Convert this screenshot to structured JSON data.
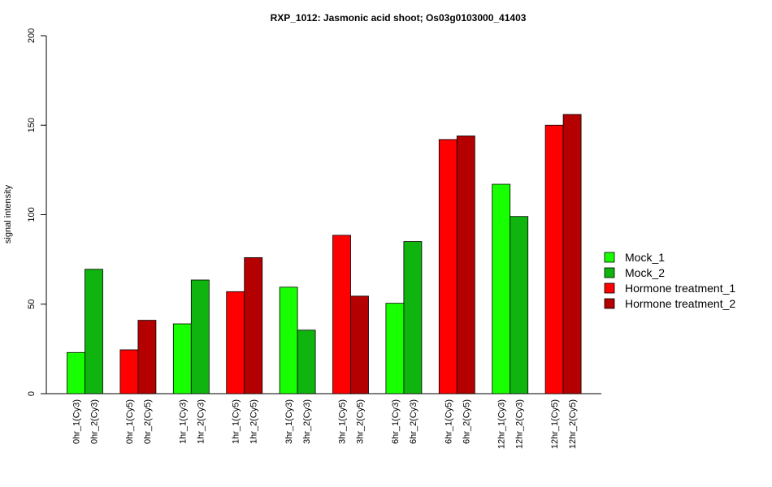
{
  "chart_data": {
    "type": "bar",
    "title": "RXP_1012: Jasmonic acid shoot; Os03g0103000_41403",
    "xlabel": "",
    "ylabel": "signal intensity",
    "ylim": [
      0,
      200
    ],
    "yticks": [
      "0",
      "50",
      "100",
      "150",
      "200"
    ],
    "grid": false,
    "legend_position": "right",
    "groups": [
      {
        "labels": [
          "0hr_1(Cy3)",
          "0hr_2(Cy3)"
        ],
        "values": [
          23,
          69.5
        ],
        "series": [
          0,
          1
        ]
      },
      {
        "labels": [
          "0hr_1(Cy5)",
          "0hr_2(Cy5)"
        ],
        "values": [
          24.5,
          41
        ],
        "series": [
          2,
          3
        ]
      },
      {
        "labels": [
          "1hr_1(Cy3)",
          "1hr_2(Cy3)"
        ],
        "values": [
          39,
          63.5
        ],
        "series": [
          0,
          1
        ]
      },
      {
        "labels": [
          "1hr_1(Cy5)",
          "1hr_2(Cy5)"
        ],
        "values": [
          57,
          76
        ],
        "series": [
          2,
          3
        ]
      },
      {
        "labels": [
          "3hr_1(Cy3)",
          "3hr_2(Cy3)"
        ],
        "values": [
          59.5,
          35.5
        ],
        "series": [
          0,
          1
        ]
      },
      {
        "labels": [
          "3hr_1(Cy5)",
          "3hr_2(Cy5)"
        ],
        "values": [
          88.5,
          54.5
        ],
        "series": [
          2,
          3
        ]
      },
      {
        "labels": [
          "6hr_1(Cy3)",
          "6hr_2(Cy3)"
        ],
        "values": [
          50.5,
          85
        ],
        "series": [
          0,
          1
        ]
      },
      {
        "labels": [
          "6hr_1(Cy5)",
          "6hr_2(Cy5)"
        ],
        "values": [
          142,
          144
        ],
        "series": [
          2,
          3
        ]
      },
      {
        "labels": [
          "12hr_1(Cy3)",
          "12hr_2(Cy3)"
        ],
        "values": [
          117,
          99
        ],
        "series": [
          0,
          1
        ]
      },
      {
        "labels": [
          "12hr_1(Cy5)",
          "12hr_2(Cy5)"
        ],
        "values": [
          150,
          156
        ],
        "series": [
          2,
          3
        ]
      }
    ],
    "series": [
      {
        "name": "Mock_1",
        "color": "#17ff00"
      },
      {
        "name": "Mock_2",
        "color": "#0fb40f"
      },
      {
        "name": "Hormone treatment_1",
        "color": "#ff0000"
      },
      {
        "name": "Hormone treatment_2",
        "color": "#b40000"
      }
    ]
  }
}
